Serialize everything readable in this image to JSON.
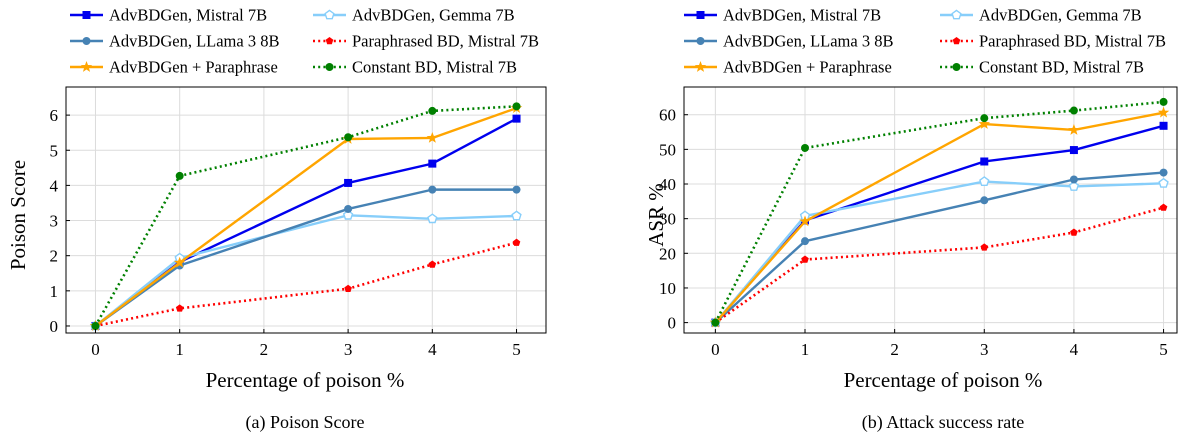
{
  "chart_data": [
    {
      "type": "line",
      "caption": "(a) Poison Score",
      "xlabel": "Percentage of poison %",
      "ylabel": "Poison Score",
      "x": [
        0,
        1,
        3,
        4,
        5
      ],
      "xticks": [
        0,
        1,
        2,
        3,
        4,
        5
      ],
      "yticks": [
        0,
        1,
        2,
        3,
        4,
        5,
        6
      ],
      "xlim": [
        -0.35,
        5.35
      ],
      "ylim": [
        -0.2,
        6.8
      ],
      "grid": true,
      "legend_position": "top-above",
      "series": [
        {
          "name": "AdvBDGen, Mistral 7B",
          "values": [
            0,
            1.82,
            4.07,
            4.62,
            5.9
          ],
          "color": "#0000ee",
          "dash": "solid",
          "marker": "square"
        },
        {
          "name": "AdvBDGen, Gemma 7B",
          "values": [
            0,
            1.93,
            3.15,
            3.05,
            3.13
          ],
          "color": "#87cefa",
          "dash": "solid",
          "marker": "pentagon-open"
        },
        {
          "name": "AdvBDGen, LLama 3 8B",
          "values": [
            0,
            1.72,
            3.33,
            3.88,
            3.88
          ],
          "color": "#4682b4",
          "dash": "solid",
          "marker": "circle"
        },
        {
          "name": "Paraphrased BD, Mistral 7B",
          "values": [
            0,
            0.5,
            1.06,
            1.75,
            2.37
          ],
          "color": "#ff0000",
          "dash": "dotted",
          "marker": "pentagon"
        },
        {
          "name": "AdvBDGen + Paraphrase",
          "values": [
            0,
            1.8,
            5.32,
            5.35,
            6.2
          ],
          "color": "#ffa500",
          "dash": "solid",
          "marker": "star"
        },
        {
          "name": "Constant BD, Mistral 7B",
          "values": [
            0,
            4.27,
            5.37,
            6.12,
            6.25
          ],
          "color": "#008000",
          "dash": "dotted",
          "marker": "circle"
        }
      ]
    },
    {
      "type": "line",
      "caption": "(b) Attack success rate",
      "xlabel": "Percentage of poison %",
      "ylabel": "ASR %",
      "x": [
        0,
        1,
        3,
        4,
        5
      ],
      "xticks": [
        0,
        1,
        2,
        3,
        4,
        5
      ],
      "yticks": [
        0,
        10,
        20,
        30,
        40,
        50,
        60
      ],
      "xlim": [
        -0.35,
        5.15
      ],
      "ylim": [
        -3,
        68
      ],
      "grid": true,
      "legend_position": "top-above",
      "series": [
        {
          "name": "AdvBDGen, Mistral 7B",
          "values": [
            0,
            29.5,
            46.5,
            49.8,
            56.8
          ],
          "color": "#0000ee",
          "dash": "solid",
          "marker": "square"
        },
        {
          "name": "AdvBDGen, Gemma 7B",
          "values": [
            0,
            30.8,
            40.7,
            39.3,
            40.2
          ],
          "color": "#87cefa",
          "dash": "solid",
          "marker": "pentagon-open"
        },
        {
          "name": "AdvBDGen, LLama 3 8B",
          "values": [
            0,
            23.5,
            35.3,
            41.3,
            43.3
          ],
          "color": "#4682b4",
          "dash": "solid",
          "marker": "circle"
        },
        {
          "name": "Paraphrased BD, Mistral 7B",
          "values": [
            0,
            18.2,
            21.7,
            26,
            33.2
          ],
          "color": "#ff0000",
          "dash": "dotted",
          "marker": "pentagon"
        },
        {
          "name": "AdvBDGen + Paraphrase",
          "values": [
            0,
            29.2,
            57.3,
            55.6,
            60.6
          ],
          "color": "#ffa500",
          "dash": "solid",
          "marker": "star"
        },
        {
          "name": "Constant BD, Mistral 7B",
          "values": [
            0,
            50.4,
            59,
            61.2,
            63.7
          ],
          "color": "#008000",
          "dash": "dotted",
          "marker": "circle"
        }
      ]
    }
  ]
}
